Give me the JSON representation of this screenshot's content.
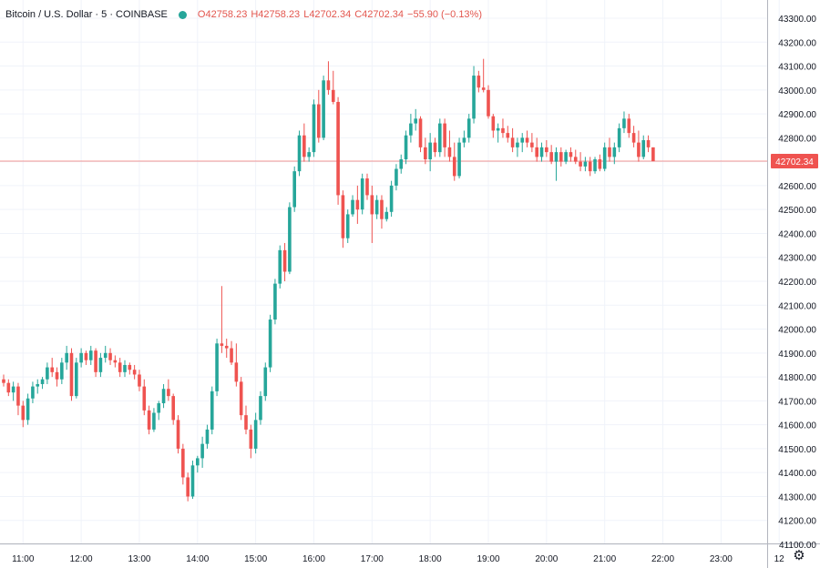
{
  "legend": {
    "symbol": "Bitcoin / U.S. Dollar · 5 · COINBASE",
    "open_label": "O",
    "open": "42758.23",
    "high_label": "H",
    "high": "42758.23",
    "low_label": "L",
    "low": "42702.34",
    "close_label": "C",
    "close": "42702.34",
    "change": "−55.90 (−0.13%)"
  },
  "colors": {
    "up": "#26a69a",
    "down": "#ef5350",
    "price_line": "#ef5350",
    "grid": "#f0f3fa"
  },
  "icons": {
    "settings": "gear-icon"
  },
  "chart_data": {
    "type": "candlestick",
    "ylim": [
      41100,
      43300
    ],
    "y_ticks": [
      41100,
      41200,
      41300,
      41400,
      41500,
      41600,
      41700,
      41800,
      41900,
      42000,
      42100,
      42200,
      42300,
      42400,
      42500,
      42600,
      42700,
      42800,
      42900,
      43000,
      43100,
      43200,
      43300
    ],
    "y_tick_labels": [
      "41100.00",
      "41200.00",
      "41300.00",
      "41400.00",
      "41500.00",
      "41600.00",
      "41700.00",
      "41800.00",
      "41900.00",
      "42000.00",
      "42100.00",
      "42200.00",
      "42300.00",
      "42400.00",
      "42500.00",
      "42600.00",
      "42700.00",
      "42800.00",
      "42900.00",
      "43000.00",
      "43100.00",
      "43200.00",
      "43300.00"
    ],
    "x_ticks": [
      {
        "label": "11:00",
        "bar": 4
      },
      {
        "label": "12:00",
        "bar": 16
      },
      {
        "label": "13:00",
        "bar": 28
      },
      {
        "label": "14:00",
        "bar": 40
      },
      {
        "label": "15:00",
        "bar": 52
      },
      {
        "label": "16:00",
        "bar": 64
      },
      {
        "label": "17:00",
        "bar": 76
      },
      {
        "label": "18:00",
        "bar": 88
      },
      {
        "label": "19:00",
        "bar": 100
      },
      {
        "label": "20:00",
        "bar": 112
      },
      {
        "label": "21:00",
        "bar": 124
      },
      {
        "label": "22:00",
        "bar": 136
      },
      {
        "label": "23:00",
        "bar": 148
      },
      {
        "label": "12",
        "bar": 160
      }
    ],
    "last_price": 42702.34,
    "last_price_label": "42702.34",
    "candles": [
      [
        41790,
        41810,
        41760,
        41775
      ],
      [
        41775,
        41790,
        41720,
        41735
      ],
      [
        41735,
        41780,
        41700,
        41760
      ],
      [
        41760,
        41775,
        41640,
        41680
      ],
      [
        41680,
        41700,
        41590,
        41620
      ],
      [
        41620,
        41730,
        41600,
        41710
      ],
      [
        41710,
        41780,
        41690,
        41760
      ],
      [
        41760,
        41790,
        41730,
        41770
      ],
      [
        41770,
        41800,
        41750,
        41790
      ],
      [
        41790,
        41860,
        41770,
        41840
      ],
      [
        41840,
        41880,
        41800,
        41820
      ],
      [
        41820,
        41840,
        41760,
        41790
      ],
      [
        41790,
        41880,
        41770,
        41860
      ],
      [
        41860,
        41930,
        41830,
        41900
      ],
      [
        41900,
        41920,
        41700,
        41720
      ],
      [
        41720,
        41880,
        41710,
        41860
      ],
      [
        41860,
        41920,
        41840,
        41900
      ],
      [
        41900,
        41910,
        41850,
        41870
      ],
      [
        41870,
        41930,
        41850,
        41910
      ],
      [
        41910,
        41920,
        41800,
        41820
      ],
      [
        41820,
        41900,
        41800,
        41880
      ],
      [
        41880,
        41930,
        41860,
        41900
      ],
      [
        41900,
        41920,
        41850,
        41870
      ],
      [
        41870,
        41890,
        41840,
        41860
      ],
      [
        41860,
        41880,
        41800,
        41820
      ],
      [
        41820,
        41870,
        41800,
        41850
      ],
      [
        41850,
        41860,
        41810,
        41830
      ],
      [
        41830,
        41850,
        41790,
        41810
      ],
      [
        41810,
        41830,
        41740,
        41760
      ],
      [
        41760,
        41790,
        41640,
        41660
      ],
      [
        41660,
        41680,
        41560,
        41580
      ],
      [
        41580,
        41670,
        41570,
        41650
      ],
      [
        41650,
        41700,
        41620,
        41690
      ],
      [
        41690,
        41770,
        41670,
        41750
      ],
      [
        41750,
        41790,
        41700,
        41720
      ],
      [
        41720,
        41730,
        41600,
        41620
      ],
      [
        41620,
        41640,
        41480,
        41500
      ],
      [
        41500,
        41520,
        41350,
        41380
      ],
      [
        41380,
        41400,
        41280,
        41300
      ],
      [
        41300,
        41450,
        41290,
        41430
      ],
      [
        41430,
        41470,
        41400,
        41460
      ],
      [
        41460,
        41550,
        41420,
        41520
      ],
      [
        41520,
        41600,
        41500,
        41580
      ],
      [
        41580,
        41760,
        41560,
        41740
      ],
      [
        41740,
        41960,
        41720,
        41940
      ],
      [
        41940,
        42180,
        41900,
        41930
      ],
      [
        41930,
        41960,
        41880,
        41920
      ],
      [
        41920,
        41950,
        41850,
        41860
      ],
      [
        41860,
        41940,
        41760,
        41780
      ],
      [
        41780,
        41800,
        41620,
        41640
      ],
      [
        41640,
        41680,
        41560,
        41580
      ],
      [
        41580,
        41600,
        41460,
        41500
      ],
      [
        41500,
        41650,
        41480,
        41620
      ],
      [
        41620,
        41740,
        41600,
        41720
      ],
      [
        41720,
        41860,
        41700,
        41840
      ],
      [
        41840,
        42060,
        41820,
        42040
      ],
      [
        42040,
        42210,
        42020,
        42190
      ],
      [
        42190,
        42350,
        42170,
        42330
      ],
      [
        42330,
        42360,
        42200,
        42240
      ],
      [
        42240,
        42530,
        42230,
        42510
      ],
      [
        42510,
        42680,
        42490,
        42660
      ],
      [
        42660,
        42830,
        42640,
        42810
      ],
      [
        42810,
        42860,
        42700,
        42720
      ],
      [
        42720,
        42760,
        42700,
        42740
      ],
      [
        42740,
        42960,
        42720,
        42940
      ],
      [
        42940,
        43000,
        42780,
        42800
      ],
      [
        42800,
        43060,
        42790,
        43040
      ],
      [
        43040,
        43120,
        42980,
        43000
      ],
      [
        43000,
        43080,
        42940,
        42950
      ],
      [
        42950,
        42970,
        42520,
        42560
      ],
      [
        42560,
        42580,
        42340,
        42380
      ],
      [
        42380,
        42500,
        42360,
        42480
      ],
      [
        42480,
        42560,
        42470,
        42540
      ],
      [
        42540,
        42600,
        42440,
        42500
      ],
      [
        42500,
        42650,
        42480,
        42630
      ],
      [
        42630,
        42650,
        42540,
        42560
      ],
      [
        42560,
        42600,
        42360,
        42480
      ],
      [
        42480,
        42560,
        42460,
        42540
      ],
      [
        42540,
        42560,
        42420,
        42460
      ],
      [
        42460,
        42510,
        42450,
        42490
      ],
      [
        42490,
        42620,
        42470,
        42600
      ],
      [
        42600,
        42690,
        42580,
        42670
      ],
      [
        42670,
        42730,
        42650,
        42710
      ],
      [
        42710,
        42830,
        42690,
        42810
      ],
      [
        42810,
        42900,
        42780,
        42860
      ],
      [
        42860,
        42920,
        42830,
        42880
      ],
      [
        42880,
        42890,
        42740,
        42760
      ],
      [
        42760,
        42800,
        42690,
        42710
      ],
      [
        42710,
        42820,
        42660,
        42780
      ],
      [
        42780,
        42800,
        42720,
        42740
      ],
      [
        42740,
        42880,
        42720,
        42860
      ],
      [
        42860,
        42880,
        42720,
        42760
      ],
      [
        42760,
        42830,
        42700,
        42720
      ],
      [
        42720,
        42780,
        42620,
        42640
      ],
      [
        42640,
        42800,
        42630,
        42780
      ],
      [
        42780,
        42830,
        42760,
        42800
      ],
      [
        42800,
        42900,
        42780,
        42880
      ],
      [
        42880,
        43100,
        42860,
        43060
      ],
      [
        43060,
        43080,
        42990,
        43010
      ],
      [
        43010,
        43130,
        42990,
        43000
      ],
      [
        43000,
        43020,
        42880,
        42890
      ],
      [
        42890,
        42900,
        42800,
        42830
      ],
      [
        42830,
        42860,
        42780,
        42840
      ],
      [
        42840,
        42880,
        42800,
        42820
      ],
      [
        42820,
        42850,
        42780,
        42800
      ],
      [
        42800,
        42840,
        42740,
        42760
      ],
      [
        42760,
        42800,
        42720,
        42780
      ],
      [
        42780,
        42820,
        42740,
        42800
      ],
      [
        42800,
        42830,
        42760,
        42780
      ],
      [
        42780,
        42820,
        42740,
        42760
      ],
      [
        42760,
        42800,
        42700,
        42720
      ],
      [
        42720,
        42780,
        42700,
        42760
      ],
      [
        42760,
        42790,
        42720,
        42740
      ],
      [
        42740,
        42770,
        42690,
        42700
      ],
      [
        42700,
        42760,
        42620,
        42740
      ],
      [
        42740,
        42760,
        42680,
        42700
      ],
      [
        42700,
        42750,
        42690,
        42740
      ],
      [
        42740,
        42760,
        42700,
        42720
      ],
      [
        42720,
        42750,
        42690,
        42700
      ],
      [
        42700,
        42740,
        42660,
        42680
      ],
      [
        42680,
        42720,
        42660,
        42700
      ],
      [
        42700,
        42720,
        42640,
        42660
      ],
      [
        42660,
        42720,
        42650,
        42710
      ],
      [
        42710,
        42730,
        42660,
        42670
      ],
      [
        42670,
        42780,
        42660,
        42760
      ],
      [
        42760,
        42800,
        42700,
        42720
      ],
      [
        42720,
        42780,
        42690,
        42760
      ],
      [
        42760,
        42860,
        42740,
        42840
      ],
      [
        42840,
        42910,
        42820,
        42880
      ],
      [
        42880,
        42900,
        42800,
        42820
      ],
      [
        42820,
        42850,
        42760,
        42780
      ],
      [
        42780,
        42830,
        42700,
        42720
      ],
      [
        42720,
        42810,
        42710,
        42790
      ],
      [
        42790,
        42810,
        42740,
        42760
      ],
      [
        42760,
        42760,
        42702,
        42702
      ]
    ]
  }
}
